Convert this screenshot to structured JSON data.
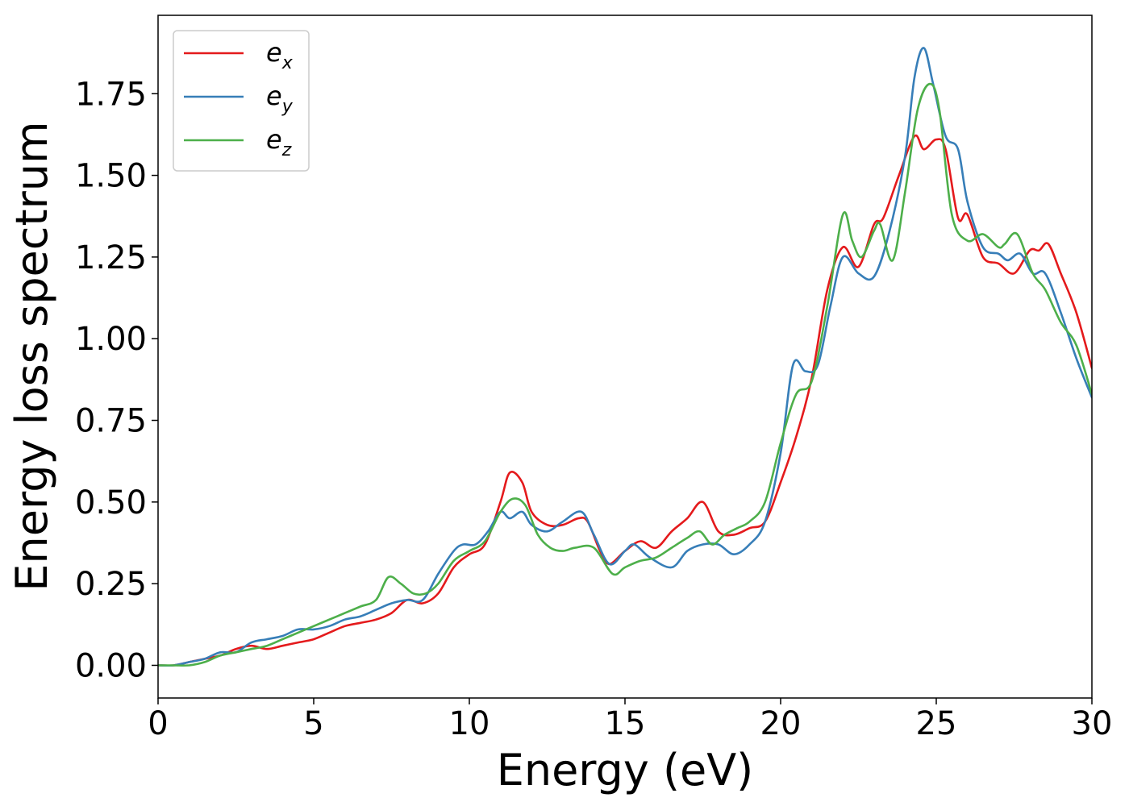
{
  "chart_data": {
    "type": "line",
    "title": "",
    "xlabel": "Energy (eV)",
    "ylabel": "Energy loss spectrum",
    "xlim": [
      0,
      30
    ],
    "ylim": [
      -0.1,
      1.99
    ],
    "xticks": [
      0,
      5,
      10,
      15,
      20,
      25,
      30
    ],
    "xtick_labels": [
      "0",
      "5",
      "10",
      "15",
      "20",
      "25",
      "30"
    ],
    "yticks": [
      0.0,
      0.25,
      0.5,
      0.75,
      1.0,
      1.25,
      1.5,
      1.75
    ],
    "ytick_labels": [
      "0.00",
      "0.25",
      "0.50",
      "0.75",
      "1.00",
      "1.25",
      "1.50",
      "1.75"
    ],
    "grid": false,
    "legend_position": "top-left",
    "series": [
      {
        "name": "e_x",
        "label_base": "e",
        "label_sub": "x",
        "color": "#e41a1c",
        "x": [
          0,
          0.5,
          1,
          1.5,
          2,
          2.5,
          3,
          3.5,
          4,
          4.5,
          5,
          5.5,
          6,
          6.5,
          7,
          7.5,
          8,
          8.5,
          9,
          9.5,
          10,
          10.5,
          11,
          11.3,
          11.7,
          12,
          12.5,
          13,
          13.5,
          13.8,
          14.2,
          14.5,
          15,
          15.5,
          16,
          16.5,
          17,
          17.5,
          18,
          18.5,
          19,
          19.5,
          20,
          20.5,
          21,
          21.5,
          22,
          22.5,
          23,
          23.3,
          23.8,
          24.3,
          24.6,
          25,
          25.3,
          25.7,
          26,
          26.5,
          27,
          27.5,
          28,
          28.3,
          28.6,
          29,
          29.5,
          30
        ],
        "y": [
          0,
          0,
          0.01,
          0.02,
          0.03,
          0.05,
          0.06,
          0.05,
          0.06,
          0.07,
          0.08,
          0.1,
          0.12,
          0.13,
          0.14,
          0.16,
          0.2,
          0.19,
          0.22,
          0.3,
          0.34,
          0.37,
          0.5,
          0.59,
          0.56,
          0.47,
          0.43,
          0.43,
          0.45,
          0.44,
          0.35,
          0.31,
          0.35,
          0.38,
          0.36,
          0.41,
          0.45,
          0.5,
          0.41,
          0.4,
          0.42,
          0.44,
          0.56,
          0.7,
          0.88,
          1.15,
          1.28,
          1.22,
          1.35,
          1.37,
          1.5,
          1.62,
          1.58,
          1.61,
          1.58,
          1.37,
          1.38,
          1.25,
          1.23,
          1.2,
          1.27,
          1.27,
          1.29,
          1.2,
          1.08,
          0.91
        ]
      },
      {
        "name": "e_y",
        "label_base": "e",
        "label_sub": "y",
        "color": "#377eb8",
        "x": [
          0,
          0.5,
          1,
          1.5,
          2,
          2.5,
          3,
          3.5,
          4,
          4.5,
          5,
          5.5,
          6,
          6.5,
          7,
          7.5,
          8,
          8.5,
          9,
          9.5,
          9.8,
          10.2,
          10.6,
          11,
          11.3,
          11.7,
          12,
          12.5,
          13,
          13.6,
          14,
          14.5,
          15,
          15.3,
          15.8,
          16.5,
          17,
          17.5,
          18,
          18.5,
          19,
          19.5,
          20,
          20.4,
          20.8,
          21.2,
          21.6,
          22,
          22.5,
          23,
          23.5,
          24,
          24.3,
          24.6,
          24.9,
          25.3,
          25.7,
          26,
          26.5,
          27,
          27.3,
          27.7,
          28.1,
          28.5,
          29,
          29.5,
          30
        ],
        "y": [
          0,
          0,
          0.01,
          0.02,
          0.04,
          0.04,
          0.07,
          0.08,
          0.09,
          0.11,
          0.11,
          0.12,
          0.14,
          0.15,
          0.17,
          0.19,
          0.2,
          0.2,
          0.28,
          0.35,
          0.37,
          0.37,
          0.41,
          0.47,
          0.45,
          0.47,
          0.43,
          0.41,
          0.44,
          0.47,
          0.4,
          0.31,
          0.35,
          0.37,
          0.33,
          0.3,
          0.35,
          0.37,
          0.37,
          0.34,
          0.37,
          0.44,
          0.65,
          0.92,
          0.9,
          0.92,
          1.1,
          1.25,
          1.2,
          1.19,
          1.33,
          1.56,
          1.8,
          1.89,
          1.78,
          1.62,
          1.58,
          1.42,
          1.28,
          1.26,
          1.24,
          1.26,
          1.2,
          1.2,
          1.08,
          0.94,
          0.82
        ]
      },
      {
        "name": "e_z",
        "label_base": "e",
        "label_sub": "z",
        "color": "#4daf4a",
        "x": [
          0,
          0.5,
          1,
          1.5,
          2,
          2.5,
          3,
          3.5,
          4,
          4.5,
          5,
          5.5,
          6,
          6.5,
          7,
          7.4,
          7.8,
          8.2,
          8.6,
          9,
          9.5,
          10,
          10.5,
          11,
          11.4,
          11.8,
          12.2,
          12.6,
          13,
          13.4,
          14,
          14.6,
          15,
          15.5,
          16,
          16.5,
          17,
          17.4,
          17.8,
          18.2,
          18.6,
          19,
          19.5,
          20,
          20.5,
          21,
          21.5,
          22,
          22.3,
          22.6,
          23,
          23.2,
          23.6,
          24,
          24.4,
          24.8,
          25.1,
          25.5,
          26,
          26.5,
          27,
          27.2,
          27.6,
          28.1,
          28.5,
          29,
          29.5,
          30
        ],
        "y": [
          0,
          0,
          0,
          0.01,
          0.03,
          0.04,
          0.05,
          0.06,
          0.08,
          0.1,
          0.12,
          0.14,
          0.16,
          0.18,
          0.2,
          0.27,
          0.25,
          0.22,
          0.22,
          0.25,
          0.32,
          0.35,
          0.38,
          0.47,
          0.51,
          0.49,
          0.4,
          0.36,
          0.35,
          0.36,
          0.36,
          0.28,
          0.3,
          0.32,
          0.33,
          0.36,
          0.39,
          0.41,
          0.37,
          0.4,
          0.42,
          0.44,
          0.5,
          0.68,
          0.83,
          0.87,
          1.1,
          1.38,
          1.3,
          1.25,
          1.33,
          1.35,
          1.24,
          1.45,
          1.7,
          1.78,
          1.7,
          1.38,
          1.3,
          1.32,
          1.28,
          1.29,
          1.32,
          1.2,
          1.15,
          1.05,
          0.98,
          0.83
        ]
      }
    ]
  }
}
